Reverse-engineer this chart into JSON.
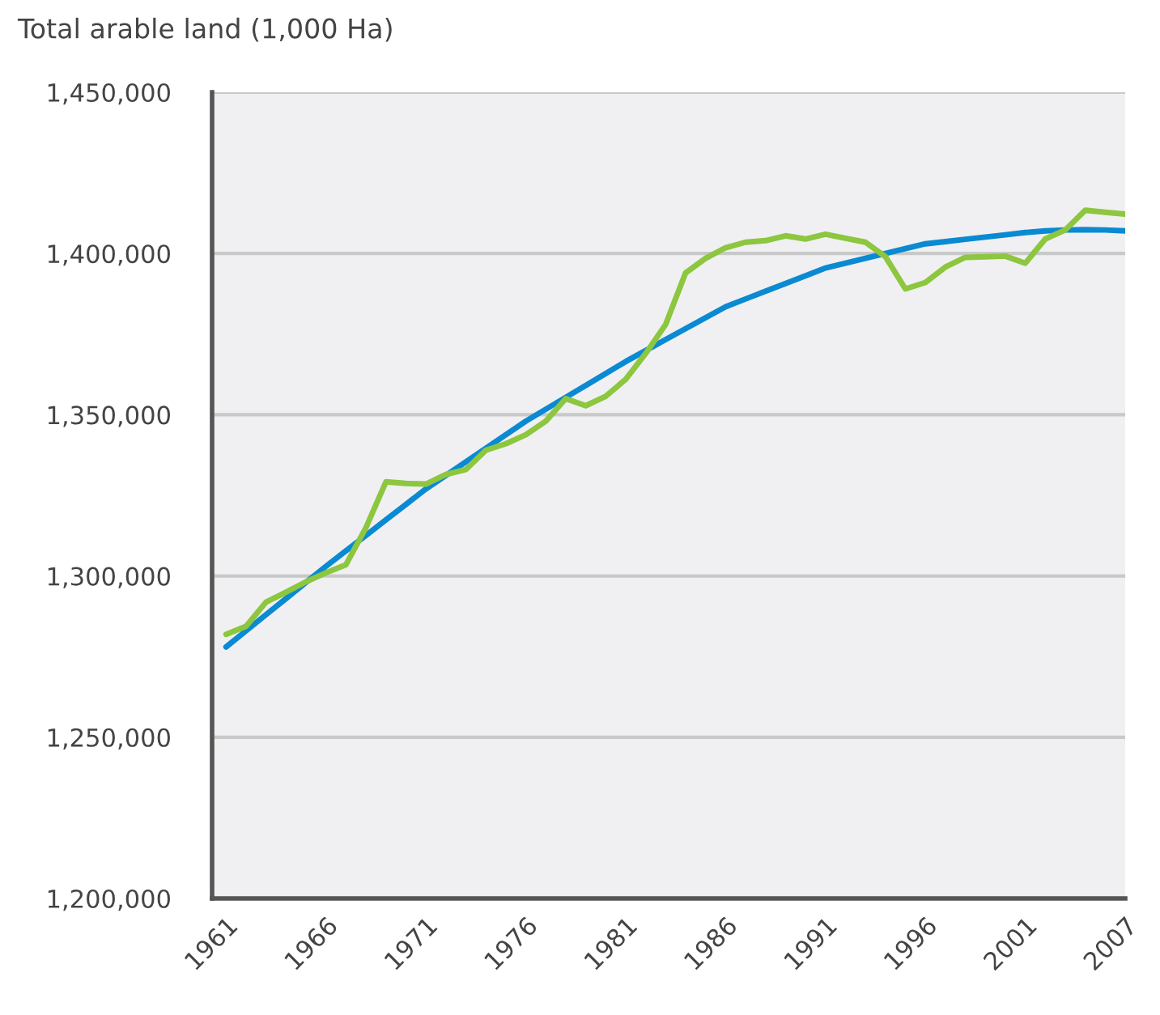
{
  "chart_data": {
    "type": "line",
    "title": "Total arable land (1,000 Ha)",
    "categories": [
      "1961",
      null,
      null,
      null,
      null,
      "1966",
      null,
      null,
      null,
      null,
      "1971",
      null,
      null,
      null,
      null,
      "1976",
      null,
      null,
      null,
      null,
      "1981",
      null,
      null,
      null,
      null,
      "1986",
      null,
      null,
      null,
      null,
      "1991",
      null,
      null,
      null,
      null,
      "1996",
      null,
      null,
      null,
      null,
      "2001",
      null,
      null,
      null,
      null,
      "2007"
    ],
    "series": [
      {
        "color": "#0a8ad2",
        "values": [
          1278000,
          1283000,
          1288000,
          1293000,
          1298000,
          1303000,
          1307800,
          1312600,
          1317400,
          1322200,
          1327000,
          1331200,
          1335400,
          1339600,
          1343800,
          1348000,
          1351700,
          1355400,
          1359100,
          1362800,
          1366500,
          1369900,
          1373300,
          1376700,
          1380100,
          1383500,
          1385900,
          1388300,
          1390700,
          1393100,
          1395500,
          1397000,
          1398500,
          1400000,
          1401500,
          1403000,
          1403700,
          1404400,
          1405100,
          1405800,
          1406500,
          1407000,
          1407300,
          1407400,
          1407300,
          1407000
        ]
      },
      {
        "color": "#8dc63f",
        "values": [
          1281900,
          1284400,
          1291900,
          1295000,
          1298200,
          1301000,
          1303500,
          1315000,
          1329200,
          1328700,
          1328500,
          1331500,
          1333000,
          1339000,
          1341000,
          1343800,
          1348000,
          1355000,
          1352800,
          1355700,
          1361000,
          1369000,
          1378000,
          1394000,
          1398500,
          1401800,
          1403500,
          1404000,
          1405500,
          1404500,
          1406000,
          1404700,
          1403500,
          1399000,
          1389000,
          1391000,
          1395800,
          1398800,
          1399000,
          1399200,
          1397000,
          1404500,
          1407300,
          1413400,
          1412800,
          1412200
        ]
      }
    ],
    "ylim": [
      1200000,
      1450000
    ],
    "yticks": [
      {
        "value": 1200000,
        "label": "1,200,000"
      },
      {
        "value": 1250000,
        "label": "1,250,000"
      },
      {
        "value": 1300000,
        "label": "1,300,000"
      },
      {
        "value": 1350000,
        "label": "1,350,000"
      },
      {
        "value": 1400000,
        "label": "1,400,000"
      },
      {
        "value": 1450000,
        "label": "1,450,000"
      }
    ],
    "grid": "y",
    "marker": "none",
    "line_style": "solid"
  }
}
